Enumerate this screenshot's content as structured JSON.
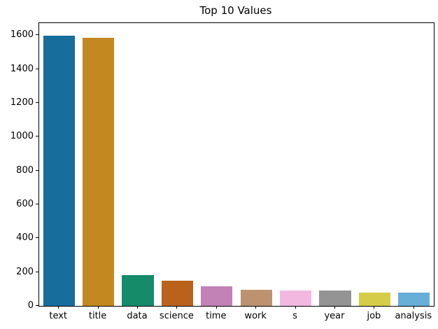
{
  "chart_data": {
    "type": "bar",
    "title": "Top 10 Values",
    "xlabel": "",
    "ylabel": "",
    "categories": [
      "text",
      "title",
      "data",
      "science",
      "time",
      "work",
      "s",
      "year",
      "job",
      "analysis"
    ],
    "values": [
      1597,
      1586,
      181,
      148,
      114,
      97,
      93,
      92,
      78,
      77
    ],
    "bar_colors": [
      "#176d9c",
      "#c38820",
      "#158b6a",
      "#ba611b",
      "#c282b6",
      "#bd926e",
      "#f2b8e0",
      "#949494",
      "#d5cd4a",
      "#68afd7"
    ],
    "yticks": [
      0,
      200,
      400,
      600,
      800,
      1000,
      1200,
      1400,
      1600
    ],
    "ylim": [
      0,
      1672
    ],
    "bar_width_ratio": 0.8,
    "grid": false,
    "legend_position": "none",
    "spine_color": "#000000",
    "text_color": "#000000",
    "background_color": "#ffffff"
  }
}
